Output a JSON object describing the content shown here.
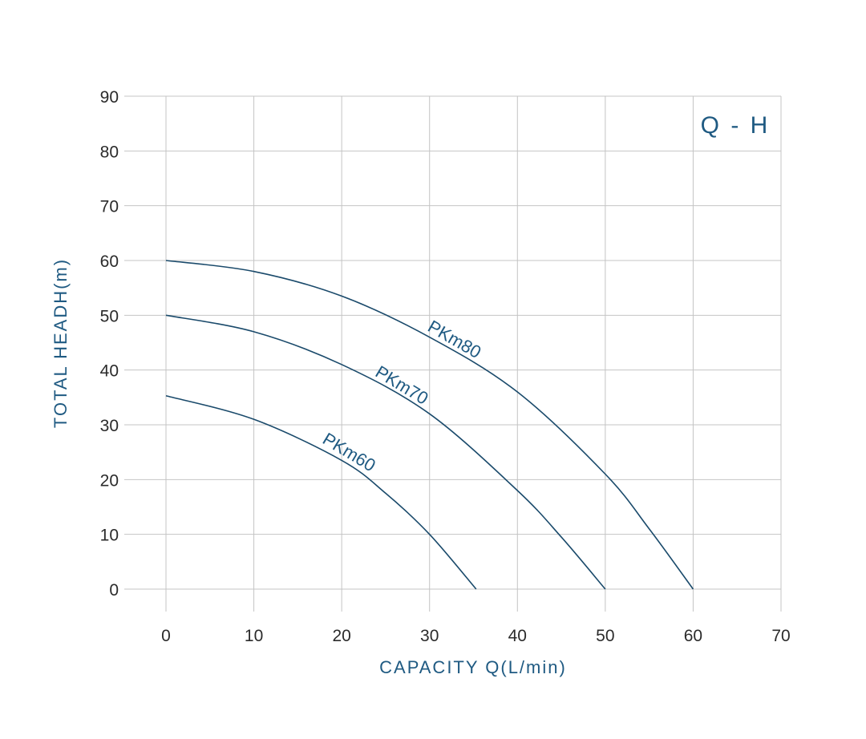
{
  "chart_data": {
    "type": "line",
    "title": "Q - H",
    "xlabel": "CAPACITY  Q(L/min)",
    "ylabel": "TOTAL HEADH(m)",
    "xlim": [
      0,
      70
    ],
    "ylim": [
      0,
      90
    ],
    "x_ticks": [
      "0",
      "10",
      "20",
      "30",
      "40",
      "50",
      "60",
      "70"
    ],
    "y_ticks": [
      "0",
      "10",
      "20",
      "30",
      "40",
      "50",
      "60",
      "70",
      "80",
      "90"
    ],
    "grid": true,
    "legend": "none",
    "series": [
      {
        "name": "PKm80",
        "x": [
          0,
          10,
          20,
          30,
          40,
          50,
          55,
          60
        ],
        "y": [
          60,
          58,
          53.5,
          46,
          36,
          21,
          11,
          0
        ]
      },
      {
        "name": "PKm70",
        "x": [
          0,
          10,
          20,
          30,
          40,
          45,
          50
        ],
        "y": [
          50,
          47,
          41,
          32,
          18,
          9.5,
          0
        ]
      },
      {
        "name": "PKm60",
        "x": [
          0,
          10,
          20,
          25,
          30,
          35.3
        ],
        "y": [
          35.3,
          31,
          23.5,
          17.5,
          10,
          0
        ]
      }
    ]
  },
  "colors": {
    "curve": "#1a4a6b",
    "label": "#1f5a82",
    "grid": "#c4c4c4",
    "tick": "#2b2b2b"
  }
}
